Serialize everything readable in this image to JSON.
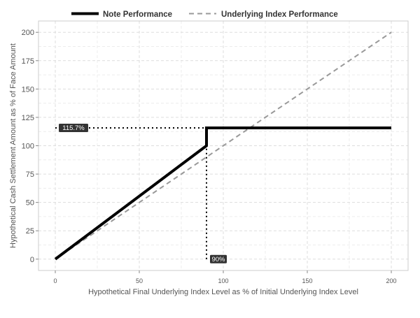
{
  "chart_data": {
    "type": "line",
    "xlabel": "Hypothetical Final Underlying Index Level as % of Initial Underlying Index Level",
    "ylabel": "Hypothetical Cash Settlement Amount as % of Face Amount",
    "xlim": [
      -10,
      210
    ],
    "ylim": [
      -10,
      210
    ],
    "x_ticks": [
      0,
      50,
      100,
      150,
      200
    ],
    "y_ticks": [
      0,
      25,
      50,
      75,
      100,
      125,
      150,
      175,
      200
    ],
    "grid": true,
    "legend_position": "top",
    "series": [
      {
        "name": "Note Performance",
        "style": "solid",
        "color": "#000000",
        "points": [
          [
            0,
            0
          ],
          [
            90,
            100
          ],
          [
            90,
            115.7
          ],
          [
            200,
            115.7
          ]
        ]
      },
      {
        "name": "Underlying Index Performance",
        "style": "dashed",
        "color": "#999999",
        "points": [
          [
            0,
            0
          ],
          [
            200,
            200
          ]
        ]
      }
    ],
    "reference_lines": [
      {
        "style": "dotted",
        "points": [
          [
            0,
            115.7
          ],
          [
            90,
            115.7
          ]
        ]
      },
      {
        "style": "dotted",
        "points": [
          [
            90,
            0
          ],
          [
            90,
            115.7
          ]
        ]
      }
    ],
    "annotations": [
      {
        "text": "115.7%",
        "x": 0,
        "y": 115.7
      },
      {
        "text": "90%",
        "x": 90,
        "y": 0
      }
    ]
  }
}
